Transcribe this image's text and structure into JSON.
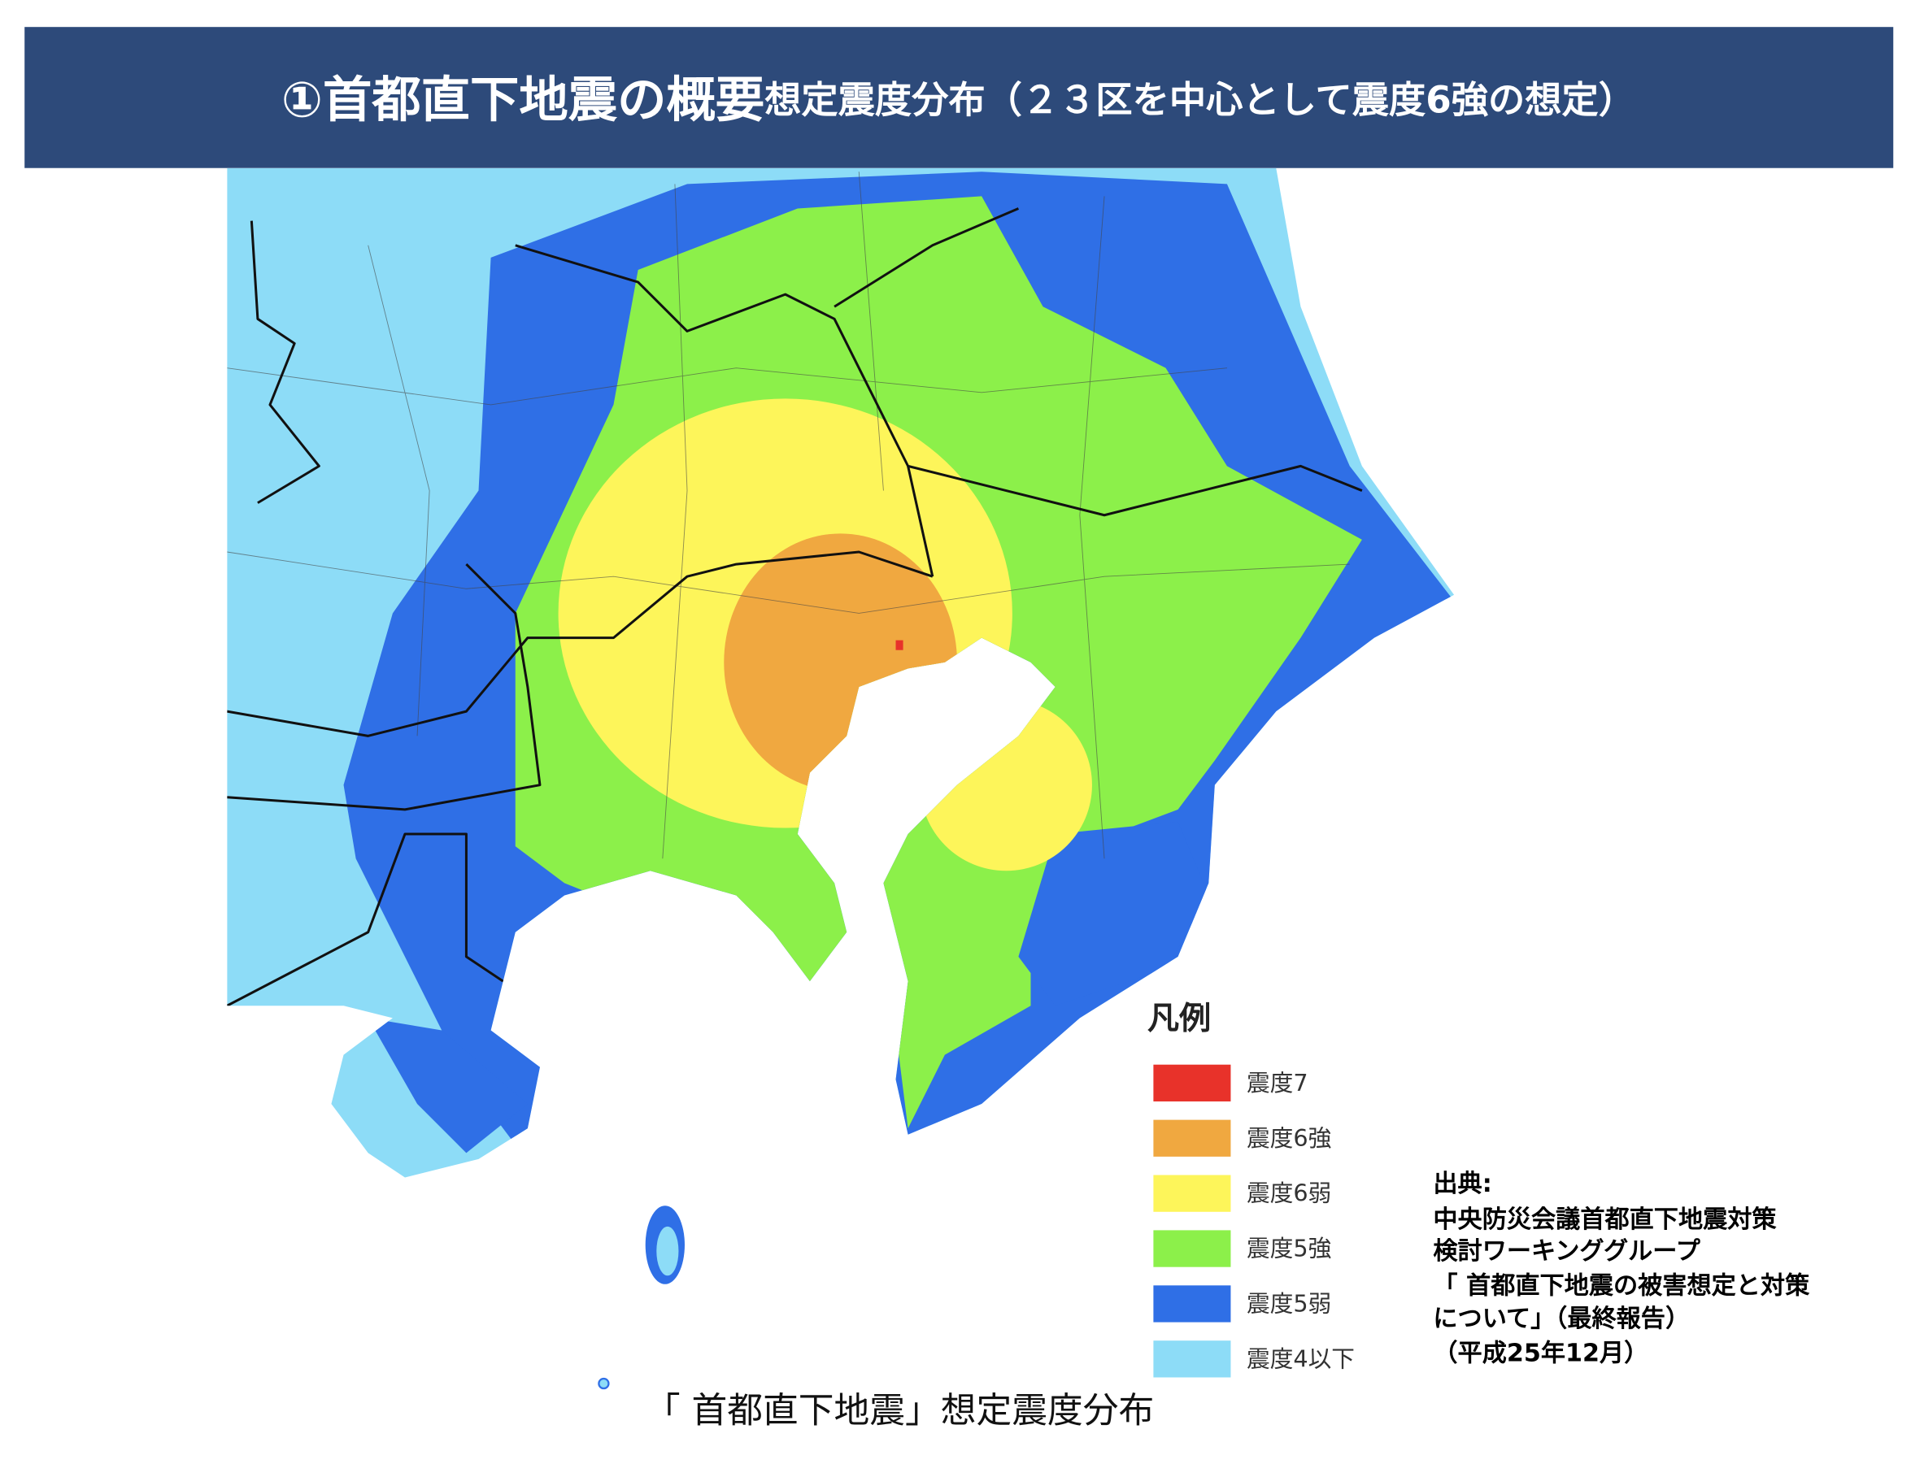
{
  "header": {
    "title_main": "①首都直下地震の概要",
    "title_sub": "想定震度分布（２３区を中心として震度6強の想定）"
  },
  "legend": {
    "title": "凡例",
    "items": [
      "震度7",
      "震度6強",
      "震度6弱",
      "震度5強",
      "震度5弱",
      "震度4以下"
    ]
  },
  "caption": "「 首都直下地震」想定震度分布",
  "source": [
    "出典:",
    "中央防災会議首都直下地震対策",
    "検討ワーキンググループ",
    "「 首都直下地震の被害想定と対策",
    "について」（最終報告）",
    "（平成25年12月）"
  ]
}
